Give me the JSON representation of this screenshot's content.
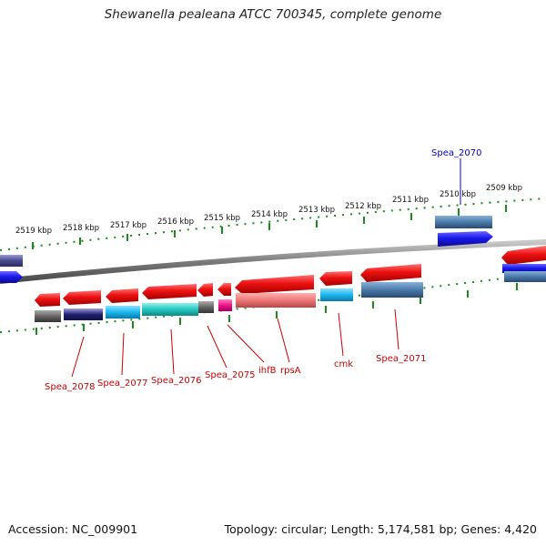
{
  "title": "Shewanella pealeana ATCC 700345, complete genome",
  "accession_text": "Accession: NC_009901",
  "summary_text": "Topology: circular; Length: 5,174,581 bp; Genes: 4,420",
  "colors": {
    "backbone": "#8a8a8a",
    "tick": "#1a8a1a",
    "red_feature": "#ee1111",
    "label_red": "#cc0000",
    "label_blue": "#0000cc",
    "blue_feature": "#1a1aee",
    "cyan_feature": "#1ab8ee",
    "teal_feature": "#22c8c0",
    "steel_feature": "#4a7aaa",
    "gray_feature": "#666666",
    "navy_feature": "#202070",
    "magenta_feature": "#ee1188",
    "salmon_feature": "#ee7777"
  },
  "kbp_labels": [
    "2519 kbp",
    "2518 kbp",
    "2517 kbp",
    "2516 kbp",
    "2515 kbp",
    "2514 kbp",
    "2513 kbp",
    "2512 kbp",
    "2511 kbp",
    "2510 kbp",
    "2509 kbp"
  ],
  "gene_labels": [
    "Spea_2078",
    "Spea_2077",
    "Spea_2076",
    "Spea_2075",
    "ihfB",
    "rpsA",
    "cmk",
    "Spea_2071",
    "Spea_2070"
  ]
}
